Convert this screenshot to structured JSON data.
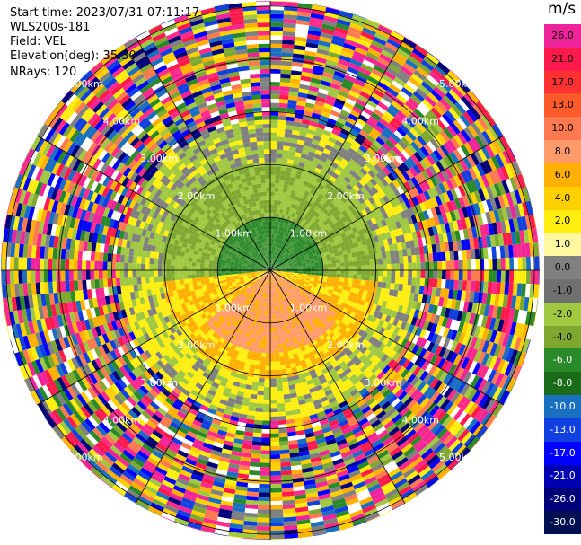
{
  "header": {
    "start_time": "Start time: 2023/07/31 07:11:17",
    "instrument": "WLS200s-181",
    "field": "Field: VEL",
    "elevation": "Elevation(deg): 35.30",
    "nrays": "NRays: 120"
  },
  "chart_data": {
    "type": "heatmap",
    "projection": "polar PPI",
    "nrays": 120,
    "range_rings": [
      {
        "range_km": 1.0,
        "label": "1.00km"
      },
      {
        "range_km": 2.0,
        "label": "2.00km"
      },
      {
        "range_km": 3.0,
        "label": "3.00km"
      },
      {
        "range_km": 4.0,
        "label": "4.00km"
      },
      {
        "range_km": 5.0,
        "label": "5.00km"
      }
    ],
    "max_range_km": 5.1,
    "spokes_deg": [
      0,
      30,
      60,
      90,
      120,
      150,
      180,
      210,
      240,
      270,
      300,
      330
    ],
    "colorbar": {
      "unit": "m/s",
      "ticks": [
        "26.0",
        "21.0",
        "17.0",
        "13.0",
        "10.0",
        "8.0",
        "6.0",
        "4.0",
        "2.0",
        "1.0",
        "0.0",
        "-1.0",
        "-2.0",
        "-4.0",
        "-6.0",
        "-8.0",
        "-10.0",
        "-13.0",
        "-17.0",
        "-21.0",
        "-26.0",
        "-30.0"
      ],
      "colors": [
        "#f0249a",
        "#ff1a4d",
        "#ff3030",
        "#ff5a2a",
        "#ff7a50",
        "#ff9a6a",
        "#ffb000",
        "#ffd000",
        "#ffee10",
        "#fff8a0",
        "#808080",
        "#707070",
        "#a0c840",
        "#7fa830",
        "#2a8a2a",
        "#1a6a1a",
        "#1a70c0",
        "#1040e0",
        "#0000ff",
        "#0000b0",
        "#00007a",
        "#001050"
      ]
    },
    "description_zones": [
      {
        "range_km": [
          0,
          1.0
        ],
        "region": "north",
        "value_ms": -6.0
      },
      {
        "range_km": [
          0,
          2.0
        ],
        "region": "south",
        "value_ms": 4.0
      },
      {
        "range_km": [
          0,
          1.5
        ],
        "region": "south-core",
        "value_ms": 8.0
      },
      {
        "range_km": [
          3.0,
          5.1
        ],
        "region": "all",
        "value_ms": "noise"
      }
    ]
  }
}
